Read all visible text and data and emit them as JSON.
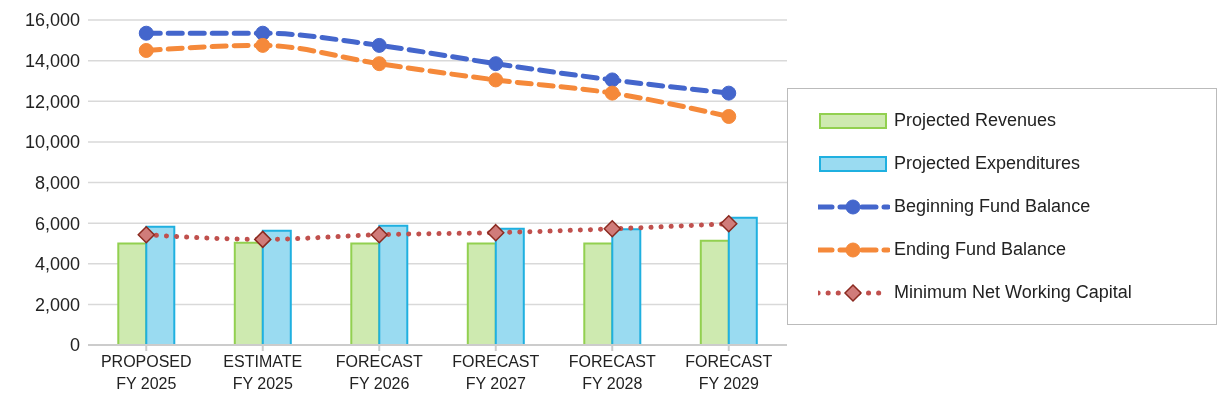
{
  "chart_data": {
    "type": "bar",
    "categories": [
      "PROPOSED FY 2025",
      "ESTIMATE FY 2025",
      "FORECAST FY 2026",
      "FORECAST FY 2027",
      "FORECAST FY 2028",
      "FORECAST FY 2029"
    ],
    "series": [
      {
        "name": "Projected Revenues",
        "color": "#92d050",
        "values": [
          5000,
          5040,
          5000,
          5000,
          5000,
          5130
        ]
      },
      {
        "name": "Projected Expenditures",
        "color": "#1fb0e0",
        "values": [
          5820,
          5630,
          5870,
          5720,
          5700,
          6260
        ]
      },
      {
        "name": "Beginning Fund Balance",
        "type": "line",
        "color": "#4466cc",
        "marker": "circle",
        "line_style": "dashed",
        "values": [
          15350,
          15350,
          14750,
          13850,
          13050,
          12400
        ]
      },
      {
        "name": "Ending Fund Balance",
        "type": "line",
        "color": "#f5893a",
        "marker": "circle",
        "line_style": "dashed",
        "values": [
          14500,
          14750,
          13850,
          13050,
          12400,
          11250
        ]
      },
      {
        "name": "Minimum Net Working Capital",
        "type": "line",
        "color": "#c0504d",
        "marker": "diamond",
        "line_style": "dotted",
        "values": [
          5430,
          5200,
          5430,
          5530,
          5720,
          5970
        ]
      }
    ],
    "ylim": [
      0,
      16000
    ],
    "yticks": [
      0,
      {
        "value": 2000,
        "label": "2,000"
      },
      {
        "value": 4000,
        "label": "4,000"
      },
      {
        "value": 6000,
        "label": "6,000"
      },
      {
        "value": 8000,
        "label": "8,000"
      },
      {
        "value": 10000,
        "label": "10,000"
      },
      {
        "value": 12000,
        "label": "12,000"
      },
      {
        "value": 14000,
        "label": "14,000"
      },
      {
        "value": 16000,
        "label": "16,000"
      }
    ],
    "grid": "y",
    "legend": "right"
  }
}
